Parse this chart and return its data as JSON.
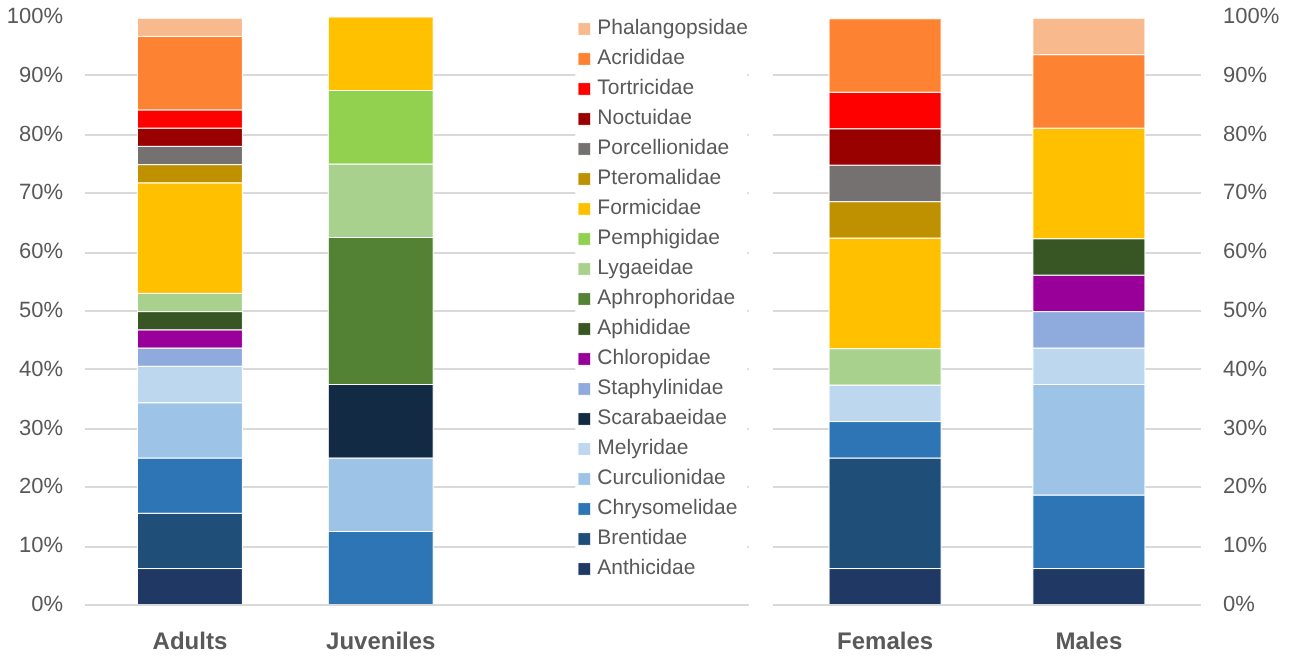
{
  "chart_data": [
    {
      "type": "bar",
      "stacked": true,
      "categories": [
        "Adults",
        "Juveniles"
      ],
      "ylim": [
        0,
        100
      ],
      "yticks": [
        {
          "value": 0,
          "label": "0%"
        },
        {
          "value": 10,
          "label": "10%"
        },
        {
          "value": 20,
          "label": "20%"
        },
        {
          "value": 30,
          "label": "30%"
        },
        {
          "value": 40,
          "label": "40%"
        },
        {
          "value": 50,
          "label": "50%"
        },
        {
          "value": 60,
          "label": "60%"
        },
        {
          "value": 70,
          "label": "70%"
        },
        {
          "value": 80,
          "label": "80%"
        },
        {
          "value": 90,
          "label": "90%"
        },
        {
          "value": 100,
          "label": "100%"
        }
      ],
      "grid": "y",
      "legend": "right",
      "series": [
        {
          "name": "Anthicidae",
          "color": "#1f3864",
          "values": [
            6.2,
            null
          ]
        },
        {
          "name": "Brentidae",
          "color": "#1f4e79",
          "values": [
            9.4,
            null
          ]
        },
        {
          "name": "Chrysomelidae",
          "color": "#2e75b6",
          "values": [
            9.4,
            12.5
          ]
        },
        {
          "name": "Curculionidae",
          "color": "#9dc3e6",
          "values": [
            9.4,
            12.5
          ]
        },
        {
          "name": "Melyridae",
          "color": "#bdd7ee",
          "values": [
            6.2,
            null
          ]
        },
        {
          "name": "Scarabaeidae",
          "color": "#132a45",
          "values": [
            null,
            12.5
          ]
        },
        {
          "name": "Staphylinidae",
          "color": "#8faadc",
          "values": [
            3.1,
            null
          ]
        },
        {
          "name": "Chloropidae",
          "color": "#990099",
          "values": [
            3.1,
            null
          ]
        },
        {
          "name": "Aphididae",
          "color": "#375623",
          "values": [
            3.1,
            null
          ]
        },
        {
          "name": "Aphrophoridae",
          "color": "#548235",
          "values": [
            null,
            25
          ]
        },
        {
          "name": "Lygaeidae",
          "color": "#a9d18e",
          "values": [
            3.1,
            12.5
          ]
        },
        {
          "name": "Pemphigidae",
          "color": "#92d050",
          "values": [
            null,
            12.5
          ]
        },
        {
          "name": "Formicidae",
          "color": "#ffc000",
          "values": [
            18.8,
            12.5
          ]
        },
        {
          "name": "Pteromalidae",
          "color": "#bf9000",
          "values": [
            3.1,
            null
          ]
        },
        {
          "name": "Porcellionidae",
          "color": "#767171",
          "values": [
            3.1,
            null
          ]
        },
        {
          "name": "Noctuidae",
          "color": "#990000",
          "values": [
            3.1,
            null
          ]
        },
        {
          "name": "Tortricidae",
          "color": "#ff0000",
          "values": [
            3.1,
            null
          ]
        },
        {
          "name": "Acrididae",
          "color": "#fd8332",
          "values": [
            12.5,
            null
          ]
        },
        {
          "name": "Phalangopsidae",
          "color": "#f8b98c",
          "values": [
            3.1,
            null
          ]
        }
      ]
    },
    {
      "type": "bar",
      "stacked": true,
      "categories": [
        "Females",
        "Males"
      ],
      "y2lim": [
        0,
        100
      ],
      "y2ticks": [
        {
          "value": 0,
          "label": "0%"
        },
        {
          "value": 10,
          "label": "10%"
        },
        {
          "value": 20,
          "label": "20%"
        },
        {
          "value": 30,
          "label": "30%"
        },
        {
          "value": 40,
          "label": "40%"
        },
        {
          "value": 50,
          "label": "50%"
        },
        {
          "value": 60,
          "label": "60%"
        },
        {
          "value": 70,
          "label": "70%"
        },
        {
          "value": 80,
          "label": "80%"
        },
        {
          "value": 90,
          "label": "90%"
        },
        {
          "value": 100,
          "label": "100%"
        }
      ],
      "grid": "y",
      "series": [
        {
          "axis": "y2",
          "color": "#1f3864",
          "values": [
            6.2,
            6.2
          ]
        },
        {
          "axis": "y2",
          "color": "#1f4e79",
          "values": [
            18.8,
            null
          ]
        },
        {
          "axis": "y2",
          "color": "#2e75b6",
          "values": [
            6.2,
            12.5
          ]
        },
        {
          "axis": "y2",
          "color": "#9dc3e6",
          "values": [
            null,
            18.8
          ]
        },
        {
          "axis": "y2",
          "color": "#bdd7ee",
          "values": [
            6.2,
            6.2
          ]
        },
        {
          "axis": "y2",
          "color": "#8faadc",
          "values": [
            null,
            6.2
          ]
        },
        {
          "axis": "y2",
          "color": "#990099",
          "values": [
            null,
            6.2
          ]
        },
        {
          "axis": "y2",
          "color": "#375623",
          "values": [
            null,
            6.2
          ]
        },
        {
          "axis": "y2",
          "color": "#a9d18e",
          "values": [
            6.2,
            null
          ]
        },
        {
          "axis": "y2",
          "color": "#ffc000",
          "values": [
            18.8,
            18.8
          ]
        },
        {
          "axis": "y2",
          "color": "#bf9000",
          "values": [
            6.2,
            null
          ]
        },
        {
          "axis": "y2",
          "color": "#767171",
          "values": [
            6.2,
            null
          ]
        },
        {
          "axis": "y2",
          "color": "#990000",
          "values": [
            6.2,
            null
          ]
        },
        {
          "axis": "y2",
          "color": "#ff0000",
          "values": [
            6.2,
            null
          ]
        },
        {
          "axis": "y2",
          "color": "#fd8332",
          "values": [
            12.5,
            12.5
          ]
        },
        {
          "axis": "y2",
          "color": "#f8b98c",
          "values": [
            null,
            6.2
          ]
        }
      ]
    }
  ]
}
